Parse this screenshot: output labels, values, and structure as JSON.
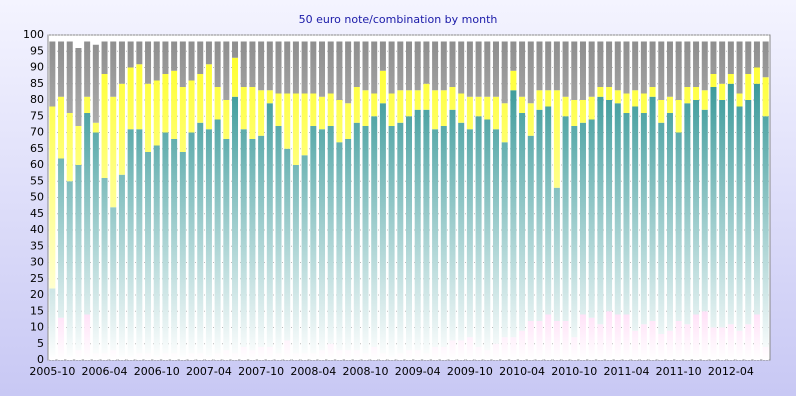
{
  "chart_data": {
    "type": "stacked_bar",
    "title": "50 euro note/combination by month",
    "categories": [
      "2005-10",
      null,
      null,
      null,
      null,
      null,
      "2006-04",
      null,
      null,
      null,
      null,
      null,
      "2006-10",
      null,
      null,
      null,
      null,
      null,
      "2007-04",
      null,
      null,
      null,
      null,
      null,
      "2007-10",
      null,
      null,
      null,
      null,
      null,
      "2008-04",
      null,
      null,
      null,
      null,
      null,
      "2008-10",
      null,
      null,
      null,
      null,
      null,
      "2009-04",
      null,
      null,
      null,
      null,
      null,
      "2009-10",
      null,
      null,
      null,
      null,
      null,
      "2010-04",
      null,
      null,
      null,
      null,
      null,
      "2010-10",
      null,
      null,
      null,
      null,
      null,
      "2011-04",
      null,
      null,
      null,
      null,
      null,
      "2011-10",
      null,
      null,
      null,
      null,
      null,
      "2012-04",
      null,
      null,
      null,
      null
    ],
    "series": [
      {
        "color": "#ff33cc",
        "values": [
          1,
          13,
          1,
          3,
          14,
          2,
          2,
          3,
          1,
          1,
          2,
          2,
          1,
          2,
          2,
          1,
          2,
          2,
          1,
          2,
          3,
          2,
          4,
          3,
          4,
          4,
          2,
          6,
          2,
          2,
          2,
          3,
          5,
          3,
          3,
          3,
          2,
          4,
          2,
          1,
          2,
          3,
          3,
          2,
          4,
          4,
          6,
          6,
          7,
          4,
          3,
          5,
          7,
          7,
          9,
          12,
          12,
          14,
          12,
          12,
          7,
          14,
          13,
          11,
          15,
          14,
          14,
          9,
          11,
          12,
          8,
          9,
          12,
          11,
          14,
          15,
          10,
          10,
          11,
          9,
          11,
          14,
          4
        ]
      },
      {
        "color": "#188888",
        "values": [
          21,
          49,
          54,
          57,
          62,
          68,
          54,
          44,
          56,
          70,
          69,
          62,
          65,
          68,
          66,
          63,
          68,
          71,
          70,
          72,
          65,
          79,
          67,
          65,
          65,
          75,
          70,
          59,
          58,
          61,
          70,
          68,
          67,
          64,
          65,
          70,
          70,
          71,
          77,
          71,
          71,
          72,
          74,
          75,
          67,
          68,
          71,
          67,
          64,
          71,
          71,
          66,
          60,
          76,
          67,
          57,
          65,
          64,
          41,
          63,
          65,
          59,
          61,
          70,
          65,
          65,
          62,
          69,
          65,
          69,
          65,
          67,
          58,
          68,
          66,
          62,
          74,
          70,
          74,
          69,
          69,
          71,
          71
        ]
      },
      {
        "color": "#ffff22",
        "values": [
          56,
          19,
          21,
          12,
          5,
          3,
          32,
          34,
          28,
          19,
          20,
          21,
          20,
          18,
          21,
          20,
          16,
          15,
          20,
          10,
          12,
          12,
          13,
          16,
          14,
          4,
          10,
          17,
          22,
          19,
          10,
          10,
          10,
          13,
          11,
          11,
          11,
          7,
          10,
          10,
          10,
          8,
          6,
          8,
          12,
          11,
          7,
          9,
          10,
          6,
          7,
          10,
          12,
          6,
          5,
          10,
          6,
          5,
          30,
          6,
          8,
          7,
          7,
          3,
          4,
          4,
          6,
          5,
          6,
          3,
          7,
          5,
          10,
          5,
          4,
          6,
          4,
          5,
          3,
          4,
          8,
          5,
          12
        ]
      },
      {
        "color": "#8c8c8c",
        "values": [
          20,
          17,
          22,
          24,
          17,
          24,
          10,
          17,
          13,
          8,
          7,
          13,
          12,
          10,
          9,
          14,
          12,
          10,
          7,
          14,
          18,
          5,
          14,
          14,
          15,
          15,
          16,
          16,
          16,
          16,
          16,
          17,
          16,
          18,
          19,
          14,
          15,
          16,
          9,
          16,
          15,
          15,
          15,
          13,
          15,
          15,
          14,
          16,
          17,
          17,
          17,
          17,
          19,
          9,
          17,
          19,
          15,
          15,
          15,
          17,
          18,
          18,
          17,
          14,
          14,
          15,
          16,
          15,
          16,
          14,
          18,
          17,
          18,
          14,
          14,
          15,
          10,
          13,
          10,
          16,
          10,
          8,
          11
        ]
      }
    ],
    "ylim": [
      0,
      100
    ],
    "yticks": [
      0,
      5,
      10,
      15,
      20,
      25,
      30,
      35,
      40,
      45,
      50,
      55,
      60,
      65,
      70,
      75,
      80,
      85,
      90,
      95,
      100
    ],
    "grid": true
  }
}
